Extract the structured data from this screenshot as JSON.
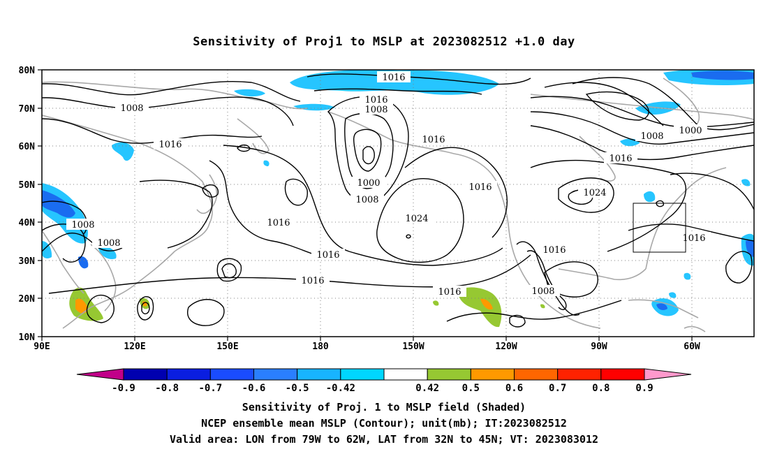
{
  "title": "Sensitivity of Proj1 to MSLP at 2023082512 +1.0 day",
  "map": {
    "lon_labels": [
      "90E",
      "120E",
      "150E",
      "180",
      "150W",
      "120W",
      "90W",
      "60W"
    ],
    "lat_labels": [
      "80N",
      "70N",
      "60N",
      "50N",
      "40N",
      "30N",
      "20N",
      "10N"
    ],
    "contour_labels": [
      "1016",
      "1016",
      "1008",
      "1008",
      "1016",
      "1016",
      "1000",
      "1008",
      "1016",
      "1024",
      "1016",
      "1016",
      "1016",
      "1016",
      "1008",
      "1008",
      "1008",
      "1016",
      "1016",
      "1024",
      "1000",
      "1016",
      "1008"
    ],
    "valid_box": {
      "lon_from": "79W",
      "lon_to": "62W",
      "lat_from": "32N",
      "lat_to": "45N"
    }
  },
  "colorbar": {
    "levels": [
      "-0.9",
      "-0.8",
      "-0.7",
      "-0.6",
      "-0.5",
      "-0.42",
      "0.42",
      "0.5",
      "0.6",
      "0.7",
      "0.8",
      "0.9"
    ],
    "colors": [
      "#c10089",
      "#0000b0",
      "#0a1ee0",
      "#1a4cff",
      "#2a7fff",
      "#18b4ff",
      "#00d6ff",
      "#ffffff",
      "#96c832",
      "#ff9900",
      "#ff6600",
      "#ff2200",
      "#ff0000",
      "#ff99cc"
    ]
  },
  "shading_colors": {
    "lightblue": "#26c5ff",
    "blue": "#1a6cf0",
    "darkblue": "#0a2ad8",
    "green": "#96c832",
    "orange": "#ff9900"
  },
  "captions": {
    "line1": "Sensitivity of Proj. 1 to MSLP field (Shaded)",
    "line2": "NCEP ensemble mean MSLP (Contour); unit(mb); IT:2023082512",
    "line3": "Valid area: LON from 79W to 62W, LAT from 32N to 45N; VT: 2023083012"
  }
}
